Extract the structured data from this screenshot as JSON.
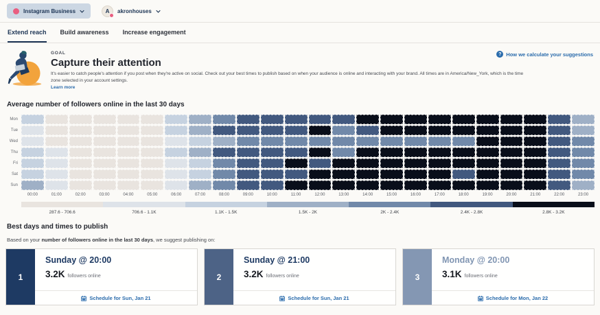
{
  "header": {
    "network": {
      "label": "Instagram Business"
    },
    "profile": {
      "initial": "A",
      "label": "akronhouses"
    }
  },
  "tabs": [
    {
      "label": "Extend reach",
      "active": true
    },
    {
      "label": "Build awareness",
      "active": false
    },
    {
      "label": "Increase engagement",
      "active": false
    }
  ],
  "goal": {
    "eyebrow": "GOAL",
    "title": "Capture their attention",
    "description": "It's easier to catch people's attention if you post when they're active on social. Check out your best times to publish based on when your audience is online and interacting with your brand. All times are in America/New_York, which is the time zone selected in your account settings.",
    "learn_more": "Learn more",
    "help_link": "How we calculate your suggestions"
  },
  "chart_data": {
    "type": "heatmap",
    "title": "Average number of followers online in the last 30 days",
    "rows": [
      "Mon",
      "Tue",
      "Wed",
      "Thu",
      "Fri",
      "Sat",
      "Sun"
    ],
    "columns": [
      "00:00",
      "01:00",
      "02:00",
      "03:00",
      "04:00",
      "05:00",
      "06:00",
      "07:00",
      "08:00",
      "09:00",
      "10:00",
      "11:00",
      "12:00",
      "13:00",
      "14:00",
      "15:00",
      "16:00",
      "17:00",
      "18:00",
      "19:00",
      "20:00",
      "21:00",
      "22:00",
      "23:00"
    ],
    "levels": [
      [
        3,
        1,
        1,
        1,
        1,
        1,
        3,
        4,
        5,
        6,
        6,
        6,
        6,
        6,
        7,
        7,
        7,
        7,
        7,
        7,
        7,
        7,
        6,
        4
      ],
      [
        2,
        1,
        1,
        1,
        1,
        1,
        3,
        4,
        6,
        6,
        6,
        6,
        7,
        5,
        6,
        7,
        7,
        7,
        7,
        7,
        7,
        7,
        6,
        4
      ],
      [
        2,
        1,
        1,
        1,
        1,
        1,
        2,
        3,
        4,
        5,
        5,
        5,
        5,
        5,
        5,
        5,
        5,
        5,
        5,
        7,
        7,
        7,
        6,
        5
      ],
      [
        3,
        2,
        1,
        1,
        1,
        1,
        3,
        4,
        6,
        6,
        6,
        6,
        7,
        5,
        7,
        7,
        7,
        7,
        7,
        7,
        7,
        7,
        6,
        5
      ],
      [
        3,
        2,
        1,
        1,
        1,
        1,
        2,
        3,
        5,
        6,
        6,
        7,
        6,
        7,
        7,
        7,
        7,
        7,
        7,
        7,
        7,
        7,
        6,
        5
      ],
      [
        3,
        2,
        1,
        1,
        1,
        1,
        2,
        3,
        5,
        6,
        6,
        6,
        7,
        7,
        7,
        7,
        7,
        7,
        6,
        7,
        7,
        7,
        6,
        5
      ],
      [
        4,
        2,
        1,
        1,
        1,
        1,
        2,
        4,
        5,
        6,
        6,
        7,
        7,
        7,
        7,
        7,
        7,
        7,
        7,
        7,
        7,
        7,
        6,
        4
      ]
    ],
    "palette": [
      "#e9e4df",
      "#dee3e9",
      "#c6d2e0",
      "#9fb0c6",
      "#7189a9",
      "#42597f",
      "#090e1a"
    ],
    "legend": [
      "287.6 - 706.6",
      "706.6 - 1.1K",
      "1.1K - 1.5K",
      "1.5K - 2K",
      "2K - 2.4K",
      "2.4K - 2.8K",
      "2.8K - 3.2K"
    ],
    "legend_note": "values are average followers online"
  },
  "best_times": {
    "title": "Best days and times to publish",
    "intro_pre": "Based on your ",
    "intro_bold": "number of followers online in the last 30 days",
    "intro_post": ", we suggest publishing on:",
    "cards": [
      {
        "rank": "1",
        "rank_color": "#1e3a63",
        "title": "Sunday @ 20:00",
        "title_color": "#1e3a63",
        "value": "3.2K",
        "value_suffix": "followers online",
        "cta": "Schedule for Sun, Jan 21"
      },
      {
        "rank": "2",
        "rank_color": "#4d6386",
        "title": "Sunday @ 21:00",
        "title_color": "#1e3a63",
        "value": "3.2K",
        "value_suffix": "followers online",
        "cta": "Schedule for Sun, Jan 21"
      },
      {
        "rank": "3",
        "rank_color": "#8497b3",
        "title": "Monday @ 20:00",
        "title_color": "#8095b2",
        "value": "3.1K",
        "value_suffix": "followers online",
        "cta": "Schedule for Mon, Jan 22"
      }
    ]
  }
}
